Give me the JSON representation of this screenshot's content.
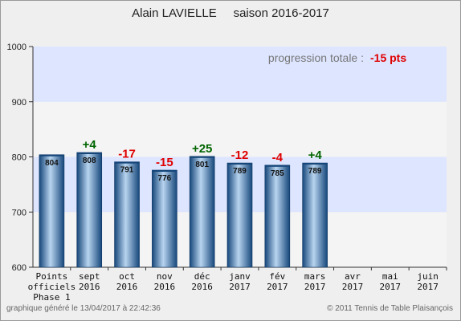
{
  "title": "Alain LAVIELLE     saison 2016-2017",
  "annotation": {
    "label": "progression totale :",
    "value": "-15 pts",
    "value_color": "#e00000"
  },
  "footer_left": "graphique généré le 13/04/2017 à 22:42:36",
  "footer_right": "© 2011 Tennis de Table Plaisançois",
  "colors": {
    "band_blue": "#dde5ff",
    "band_light": "#f4f4f4",
    "bar_dark": "#15467a",
    "bar_light": "#b8d4ef",
    "positive": "#006400",
    "negative": "#e00000"
  },
  "chart_data": {
    "type": "bar",
    "title": "Alain LAVIELLE     saison 2016-2017",
    "xlabel": "",
    "ylabel": "",
    "ylim": [
      600,
      1000
    ],
    "yticks": [
      600,
      700,
      800,
      900,
      1000
    ],
    "grid": true,
    "categories": [
      [
        "Points",
        "officiels",
        "Phase 1"
      ],
      [
        "sept",
        "2016"
      ],
      [
        "oct",
        "2016"
      ],
      [
        "nov",
        "2016"
      ],
      [
        "déc",
        "2016"
      ],
      [
        "janv",
        "2017"
      ],
      [
        "fév",
        "2017"
      ],
      [
        "mars",
        "2017"
      ],
      [
        "avr",
        "2017"
      ],
      [
        "mai",
        "2017"
      ],
      [
        "juin",
        "2017"
      ]
    ],
    "values": [
      804,
      808,
      791,
      776,
      801,
      789,
      785,
      789,
      null,
      null,
      null
    ],
    "value_labels": [
      "804",
      "808",
      "791",
      "776",
      "801",
      "789",
      "785",
      "789",
      "",
      "",
      ""
    ],
    "changes": [
      "",
      "+4",
      "-17",
      "-15",
      "+25",
      "-12",
      "-4",
      "+4",
      "",
      "",
      ""
    ]
  }
}
